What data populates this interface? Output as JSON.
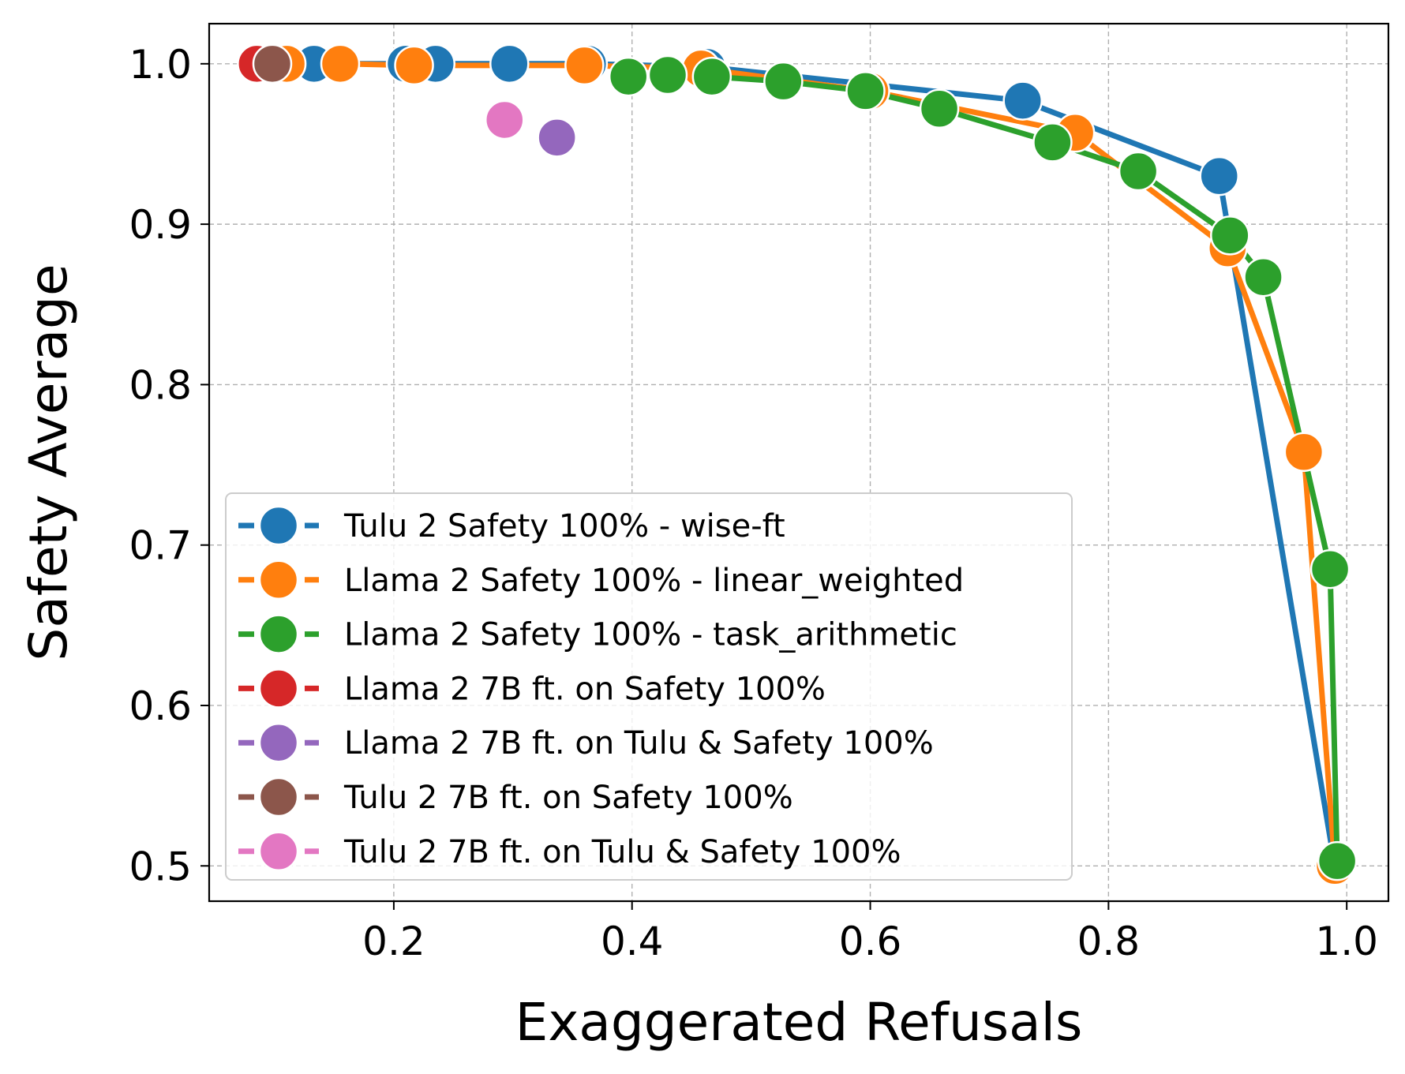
{
  "chart_data": {
    "type": "line",
    "title": "",
    "xlabel": "Exaggerated Refusals",
    "ylabel": "Safety Average",
    "xlim": [
      0.045,
      1.035
    ],
    "ylim": [
      0.478,
      1.025
    ],
    "xticks": [
      0.2,
      0.4,
      0.6,
      0.8,
      1.0
    ],
    "xtick_labels": [
      "0.2",
      "0.4",
      "0.6",
      "0.8",
      "1.0"
    ],
    "yticks": [
      0.5,
      0.6,
      0.7,
      0.8,
      0.9,
      1.0
    ],
    "ytick_labels": [
      "0.5",
      "0.6",
      "0.7",
      "0.8",
      "0.9",
      "1.0"
    ],
    "grid": true,
    "legend_position": "lower-left",
    "series": [
      {
        "name": "Tulu 2 Safety 100% - wise-ft",
        "color": "#1f77b4",
        "kind": "line",
        "x": [
          0.99,
          0.893,
          0.728,
          0.463,
          0.363,
          0.297,
          0.235,
          0.21,
          0.133,
          0.095
        ],
        "y": [
          0.5,
          0.93,
          0.977,
          0.998,
          1.0,
          1.0,
          1.0,
          1.0,
          1.0,
          1.0
        ]
      },
      {
        "name": "Llama 2 Safety 100% - linear_weighted",
        "color": "#ff7f0e",
        "kind": "line",
        "x": [
          0.99,
          0.964,
          0.9,
          0.772,
          0.6,
          0.458,
          0.36,
          0.217,
          0.155,
          0.11
        ],
        "y": [
          0.5,
          0.758,
          0.885,
          0.957,
          0.983,
          0.997,
          0.999,
          0.999,
          1.0,
          1.0
        ]
      },
      {
        "name": "Llama 2 Safety 100% - task_arithmetic",
        "color": "#2ca02c",
        "kind": "line",
        "x": [
          0.992,
          0.986,
          0.93,
          0.902,
          0.825,
          0.753,
          0.658,
          0.596,
          0.527,
          0.467,
          0.43,
          0.397
        ],
        "y": [
          0.503,
          0.685,
          0.867,
          0.893,
          0.933,
          0.951,
          0.972,
          0.983,
          0.989,
          0.992,
          0.993,
          0.992
        ]
      },
      {
        "name": "Llama 2 7B ft. on Safety 100%",
        "color": "#d62728",
        "kind": "point",
        "x": [
          0.085
        ],
        "y": [
          1.0
        ]
      },
      {
        "name": "Llama 2 7B ft. on Tulu & Safety 100%",
        "color": "#9467bd",
        "kind": "point",
        "x": [
          0.337
        ],
        "y": [
          0.954
        ]
      },
      {
        "name": "Tulu 2 7B ft. on Safety 100%",
        "color": "#8c564b",
        "kind": "point",
        "x": [
          0.098
        ],
        "y": [
          1.0
        ]
      },
      {
        "name": "Tulu 2 7B ft. on Tulu & Safety 100%",
        "color": "#e377c2",
        "kind": "point",
        "x": [
          0.293
        ],
        "y": [
          0.965
        ]
      }
    ]
  }
}
